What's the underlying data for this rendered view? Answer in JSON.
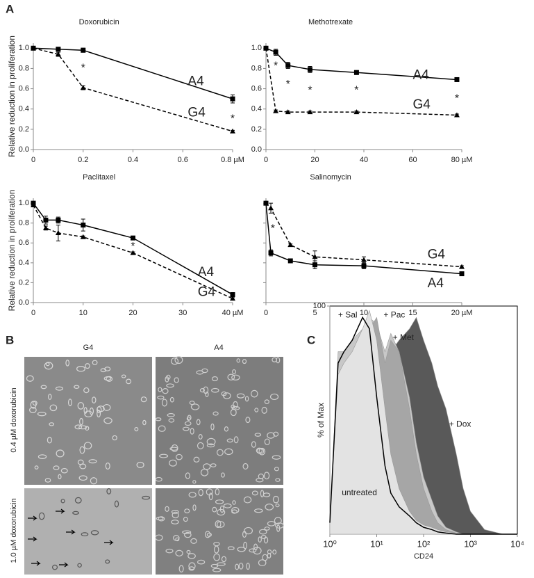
{
  "panel_labels": [
    "A",
    "B",
    "C"
  ],
  "micrographs": {
    "columns": [
      "G4",
      "A4"
    ],
    "rows": [
      "0.4 µM doxorubicin",
      "1.0 µM doxorubicin"
    ]
  },
  "chart_data": [
    {
      "type": "line",
      "title": "Doxorubicin",
      "ylabel": "Relative reduction in proliferation",
      "x": [
        0,
        0.1,
        0.2,
        0.8
      ],
      "xlim": [
        0,
        0.8
      ],
      "ylim": [
        0,
        1.05
      ],
      "xticks": [
        0,
        0.2,
        0.4,
        0.6,
        {
          "value": 0.8,
          "label": "0.8 µM"
        }
      ],
      "yticks": [
        {
          "value": 0,
          "label": "0.0"
        },
        0.2,
        0.4,
        0.6,
        0.8,
        {
          "value": 1,
          "label": "1.0"
        }
      ],
      "series": [
        {
          "name": "A4",
          "color": "#000",
          "dashed": false,
          "marker": "square",
          "values": [
            1.0,
            0.99,
            0.98,
            0.5
          ],
          "errors": [
            0.01,
            0.01,
            0.02,
            0.04
          ],
          "label_pos": [
            0.62,
            0.67
          ]
        },
        {
          "name": "G4",
          "color": "#000",
          "dashed": true,
          "marker": "triangle",
          "values": [
            1.0,
            0.94,
            0.61,
            0.18
          ],
          "errors": [
            0.01,
            0.02,
            0.02,
            0.01
          ],
          "label_pos": [
            0.62,
            0.36
          ]
        }
      ],
      "annotations": [
        {
          "text": "*",
          "x": 0.2,
          "y": 0.8
        },
        {
          "text": "*",
          "x": 0.8,
          "y": 0.3
        }
      ]
    },
    {
      "type": "line",
      "title": "Methotrexate",
      "x": [
        0,
        4,
        9,
        18,
        37,
        78
      ],
      "xlim": [
        0,
        80
      ],
      "ylim": [
        0,
        1.05
      ],
      "xticks": [
        0,
        20,
        40,
        60,
        {
          "value": 80,
          "label": "80 µM"
        }
      ],
      "yticks": [
        {
          "value": 0,
          "label": "0.0"
        },
        0.2,
        0.4,
        0.6,
        0.8,
        {
          "value": 1,
          "label": "1.0"
        }
      ],
      "series": [
        {
          "name": "A4",
          "color": "#000",
          "dashed": false,
          "marker": "square",
          "values": [
            1.0,
            0.96,
            0.83,
            0.79,
            0.76,
            0.69
          ],
          "errors": [
            0.01,
            0.03,
            0.03,
            0.03,
            0.02,
            0.01
          ],
          "label_pos": [
            60,
            0.73
          ]
        },
        {
          "name": "G4",
          "color": "#000",
          "dashed": true,
          "marker": "triangle",
          "values": [
            1.0,
            0.38,
            0.37,
            0.37,
            0.37,
            0.34
          ],
          "errors": [
            0.01,
            0.01,
            0.01,
            0.01,
            0.01,
            0.01
          ],
          "label_pos": [
            60,
            0.44
          ]
        }
      ],
      "annotations": [
        {
          "text": "*",
          "x": 4,
          "y": 0.82
        },
        {
          "text": "*",
          "x": 9,
          "y": 0.64
        },
        {
          "text": "*",
          "x": 18,
          "y": 0.58
        },
        {
          "text": "*",
          "x": 37,
          "y": 0.58
        },
        {
          "text": "*",
          "x": 78,
          "y": 0.5
        }
      ]
    },
    {
      "type": "line",
      "title": "Paclitaxel",
      "ylabel": "Relative reduction in proliferation",
      "x": [
        0,
        2.5,
        5,
        10,
        20,
        40
      ],
      "xlim": [
        0,
        40
      ],
      "ylim": [
        0,
        1.05
      ],
      "xticks": [
        0,
        10,
        20,
        30,
        {
          "value": 40,
          "label": "40 µM"
        }
      ],
      "yticks": [
        {
          "value": 0,
          "label": "0.0"
        },
        0.2,
        0.4,
        0.6,
        0.8,
        {
          "value": 1,
          "label": "1.0"
        }
      ],
      "series": [
        {
          "name": "A4",
          "color": "#000",
          "dashed": false,
          "marker": "square",
          "values": [
            1.0,
            0.83,
            0.83,
            0.78,
            0.65,
            0.08
          ],
          "errors": [
            0.01,
            0.04,
            0.03,
            0.06,
            0.01,
            0.02
          ],
          "label_pos": [
            33,
            0.3
          ]
        },
        {
          "name": "G4",
          "color": "#000",
          "dashed": true,
          "marker": "triangle",
          "values": [
            0.98,
            0.75,
            0.7,
            0.66,
            0.5,
            0.04
          ],
          "errors": [
            0.01,
            0.02,
            0.08,
            0.01,
            0.01,
            0.01
          ],
          "label_pos": [
            33,
            0.1
          ]
        }
      ],
      "annotations": [
        {
          "text": "*",
          "x": 20,
          "y": 0.56
        }
      ]
    },
    {
      "type": "line",
      "title": "Salinomycin",
      "ytick_labels": false,
      "x": [
        0,
        0.5,
        2.5,
        5,
        10,
        20
      ],
      "xlim": [
        0,
        20
      ],
      "ylim": [
        0,
        1.05
      ],
      "xticks": [
        0,
        5,
        10,
        15,
        {
          "value": 20,
          "label": "20 µM"
        }
      ],
      "yticks": [
        0,
        0.2,
        0.4,
        0.6,
        0.8,
        1
      ],
      "series": [
        {
          "name": "A4",
          "color": "#000",
          "dashed": false,
          "marker": "square",
          "values": [
            1.0,
            0.5,
            0.42,
            0.38,
            0.37,
            0.29
          ],
          "errors": [
            0.01,
            0.03,
            0.01,
            0.04,
            0.03,
            0.01
          ],
          "label_pos": [
            16.5,
            0.19
          ]
        },
        {
          "name": "G4",
          "color": "#000",
          "dashed": true,
          "marker": "triangle",
          "values": [
            1.0,
            0.95,
            0.58,
            0.46,
            0.43,
            0.36
          ],
          "errors": [
            0.01,
            0.05,
            0.01,
            0.06,
            0.03,
            0.01
          ],
          "label_pos": [
            16.5,
            0.48
          ]
        }
      ],
      "annotations": [
        {
          "text": "*",
          "x": 0.7,
          "y": 0.74
        }
      ]
    },
    {
      "type": "area",
      "xlog": true,
      "xlabel": "CD24",
      "ylabel": "% of Max",
      "x": [
        1,
        1.5,
        2,
        3,
        5,
        7,
        10,
        15,
        20,
        30,
        50,
        70,
        100,
        150,
        200,
        300,
        500,
        700,
        1000,
        2000,
        5000,
        10000
      ],
      "xlim": [
        1,
        10000
      ],
      "ylim": [
        0,
        100
      ],
      "xticks": [
        {
          "value": 1,
          "label": "10⁰"
        },
        {
          "value": 10,
          "label": "10¹"
        },
        {
          "value": 100,
          "label": "10²"
        },
        {
          "value": 1000,
          "label": "10³"
        },
        {
          "value": 10000,
          "label": "10⁴"
        }
      ],
      "yticks": [
        100
      ],
      "series": [
        {
          "name": "+ Dox",
          "color": "#595959",
          "style": "area",
          "values": [
            0,
            0,
            0,
            5,
            20,
            40,
            60,
            75,
            80,
            85,
            90,
            95,
            85,
            75,
            65,
            55,
            35,
            20,
            10,
            2,
            0,
            0
          ],
          "label_pos": [
            350,
            48
          ]
        },
        {
          "name": "+ Met",
          "color": "#c8c8c8",
          "style": "area",
          "values": [
            5,
            80,
            80,
            85,
            90,
            95,
            92,
            80,
            88,
            80,
            60,
            40,
            25,
            15,
            8,
            3,
            1,
            0,
            0,
            0,
            0,
            0
          ],
          "label_pos": [
            22,
            86
          ]
        },
        {
          "name": "+ Pac",
          "color": "#a6a6a6",
          "style": "area",
          "values": [
            0,
            0,
            5,
            30,
            70,
            90,
            95,
            75,
            85,
            80,
            55,
            35,
            20,
            10,
            5,
            2,
            0.5,
            0,
            0,
            0,
            0,
            0
          ],
          "label_pos": [
            14,
            96
          ]
        },
        {
          "name": "untreated",
          "color": "#e3e3e3",
          "style": "area",
          "values": [
            5,
            70,
            75,
            80,
            90,
            98,
            85,
            55,
            35,
            20,
            10,
            6,
            4,
            3,
            2,
            1,
            0.5,
            0,
            0,
            0,
            0,
            0
          ],
          "label_pos": [
            1.8,
            18
          ]
        },
        {
          "name": "+ Sal",
          "color": "#000",
          "style": "line",
          "values": [
            5,
            75,
            80,
            85,
            95,
            90,
            60,
            30,
            18,
            12,
            8,
            5,
            3,
            2,
            1,
            0.5,
            0,
            0,
            0,
            0,
            0,
            0
          ],
          "label_pos": [
            1.5,
            96
          ]
        }
      ]
    }
  ]
}
